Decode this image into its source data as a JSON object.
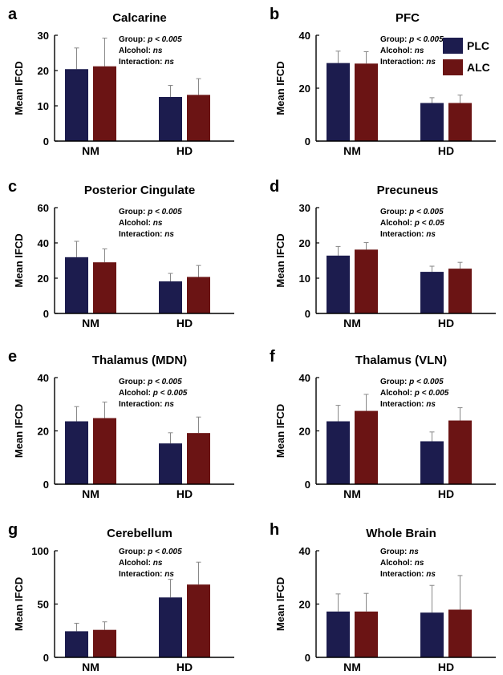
{
  "colors": {
    "plc": "#1c1c4e",
    "alc": "#6b1414",
    "axis": "#000000",
    "error": "#888888"
  },
  "chart_data": [
    {
      "type": "bar",
      "panel": "a",
      "title": "Calcarine",
      "ylabel": "Mean IFCD",
      "categories": [
        "NM",
        "HD"
      ],
      "ylim": [
        0,
        30
      ],
      "yticks": [
        0,
        10,
        20,
        30
      ],
      "series": [
        {
          "name": "PLC",
          "values": [
            20.4,
            12.5
          ],
          "errors": [
            6.0,
            3.3
          ]
        },
        {
          "name": "ALC",
          "values": [
            21.2,
            13.1
          ],
          "errors": [
            8.0,
            4.6
          ]
        }
      ],
      "stats": [
        {
          "label": "Group: ",
          "value": "p < 0.005"
        },
        {
          "label": "Alcohol: ",
          "value": "ns"
        },
        {
          "label": "Interaction: ",
          "value": "ns"
        }
      ]
    },
    {
      "type": "bar",
      "panel": "b",
      "title": "PFC",
      "ylabel": "Mean IFCD",
      "categories": [
        "NM",
        "HD"
      ],
      "ylim": [
        0,
        40
      ],
      "yticks": [
        0,
        20,
        40
      ],
      "series": [
        {
          "name": "PLC",
          "values": [
            29.5,
            14.4
          ],
          "errors": [
            4.5,
            2.0
          ]
        },
        {
          "name": "ALC",
          "values": [
            29.3,
            14.4
          ],
          "errors": [
            4.5,
            3.0
          ]
        }
      ],
      "stats": [
        {
          "label": "Group: ",
          "value": "p < 0.005"
        },
        {
          "label": "Alcohol: ",
          "value": "ns"
        },
        {
          "label": "Interaction: ",
          "value": "ns"
        }
      ],
      "legend": {
        "position": "top-right",
        "entries": [
          "PLC",
          "ALC"
        ]
      }
    },
    {
      "type": "bar",
      "panel": "c",
      "title": "Posterior Cingulate",
      "ylabel": "Mean IFCD",
      "categories": [
        "NM",
        "HD"
      ],
      "ylim": [
        0,
        60
      ],
      "yticks": [
        0,
        20,
        40,
        60
      ],
      "series": [
        {
          "name": "PLC",
          "values": [
            31.9,
            18.2
          ],
          "errors": [
            9.0,
            4.5
          ]
        },
        {
          "name": "ALC",
          "values": [
            29.0,
            20.7
          ],
          "errors": [
            7.6,
            6.5
          ]
        }
      ],
      "stats": [
        {
          "label": "Group: ",
          "value": "p < 0.005"
        },
        {
          "label": "Alcohol: ",
          "value": "ns"
        },
        {
          "label": "Interaction: ",
          "value": "ns"
        }
      ]
    },
    {
      "type": "bar",
      "panel": "d",
      "title": "Precuneus",
      "ylabel": "Mean IFCD",
      "categories": [
        "NM",
        "HD"
      ],
      "ylim": [
        0,
        30
      ],
      "yticks": [
        0,
        10,
        20,
        30
      ],
      "series": [
        {
          "name": "PLC",
          "values": [
            16.4,
            11.8
          ],
          "errors": [
            2.6,
            1.6
          ]
        },
        {
          "name": "ALC",
          "values": [
            18.1,
            12.7
          ],
          "errors": [
            2.0,
            1.8
          ]
        }
      ],
      "stats": [
        {
          "label": "Group: ",
          "value": "p < 0.005"
        },
        {
          "label": "Alcohol: ",
          "value": "p < 0.05"
        },
        {
          "label": "Interaction: ",
          "value": "ns"
        }
      ]
    },
    {
      "type": "bar",
      "panel": "e",
      "title": "Thalamus (MDN)",
      "ylabel": "Mean IFCD",
      "categories": [
        "NM",
        "HD"
      ],
      "ylim": [
        0,
        40
      ],
      "yticks": [
        0,
        20,
        40
      ],
      "series": [
        {
          "name": "PLC",
          "values": [
            23.6,
            15.3
          ],
          "errors": [
            5.5,
            4.0
          ]
        },
        {
          "name": "ALC",
          "values": [
            24.8,
            19.2
          ],
          "errors": [
            6.0,
            6.0
          ]
        }
      ],
      "stats": [
        {
          "label": "Group: ",
          "value": "p < 0.005"
        },
        {
          "label": "Alcohol: ",
          "value": "p < 0.005"
        },
        {
          "label": "Interaction: ",
          "value": "ns"
        }
      ]
    },
    {
      "type": "bar",
      "panel": "f",
      "title": "Thalamus (VLN)",
      "ylabel": "Mean IFCD",
      "categories": [
        "NM",
        "HD"
      ],
      "ylim": [
        0,
        40
      ],
      "yticks": [
        0,
        20,
        40
      ],
      "series": [
        {
          "name": "PLC",
          "values": [
            23.6,
            16.1
          ],
          "errors": [
            6.0,
            3.5
          ]
        },
        {
          "name": "ALC",
          "values": [
            27.5,
            23.9
          ],
          "errors": [
            6.2,
            4.8
          ]
        }
      ],
      "stats": [
        {
          "label": "Group: ",
          "value": "p < 0.005"
        },
        {
          "label": "Alcohol: ",
          "value": "p < 0.005"
        },
        {
          "label": "Interaction: ",
          "value": "ns"
        }
      ]
    },
    {
      "type": "bar",
      "panel": "g",
      "title": "Cerebellum",
      "ylabel": "Mean IFCD",
      "categories": [
        "NM",
        "HD"
      ],
      "ylim": [
        0,
        100
      ],
      "yticks": [
        0,
        50,
        100
      ],
      "series": [
        {
          "name": "PLC",
          "values": [
            24.5,
            56.2
          ],
          "errors": [
            7.5,
            17.0
          ]
        },
        {
          "name": "ALC",
          "values": [
            25.8,
            68.3
          ],
          "errors": [
            7.5,
            21.0
          ]
        }
      ],
      "stats": [
        {
          "label": "Group: ",
          "value": "p < 0.005"
        },
        {
          "label": "Alcohol: ",
          "value": "ns"
        },
        {
          "label": "Interaction: ",
          "value": "ns"
        }
      ]
    },
    {
      "type": "bar",
      "panel": "h",
      "title": "Whole Brain",
      "ylabel": "Mean IFCD",
      "categories": [
        "NM",
        "HD"
      ],
      "ylim": [
        0,
        40
      ],
      "yticks": [
        0,
        20,
        40
      ],
      "series": [
        {
          "name": "PLC",
          "values": [
            17.2,
            16.8
          ],
          "errors": [
            6.6,
            10.2
          ]
        },
        {
          "name": "ALC",
          "values": [
            17.2,
            17.9
          ],
          "errors": [
            6.8,
            12.8
          ]
        }
      ],
      "stats": [
        {
          "label": "Group: ",
          "value": "ns"
        },
        {
          "label": "Alcohol: ",
          "value": "ns"
        },
        {
          "label": "Interaction: ",
          "value": "ns"
        }
      ]
    }
  ]
}
